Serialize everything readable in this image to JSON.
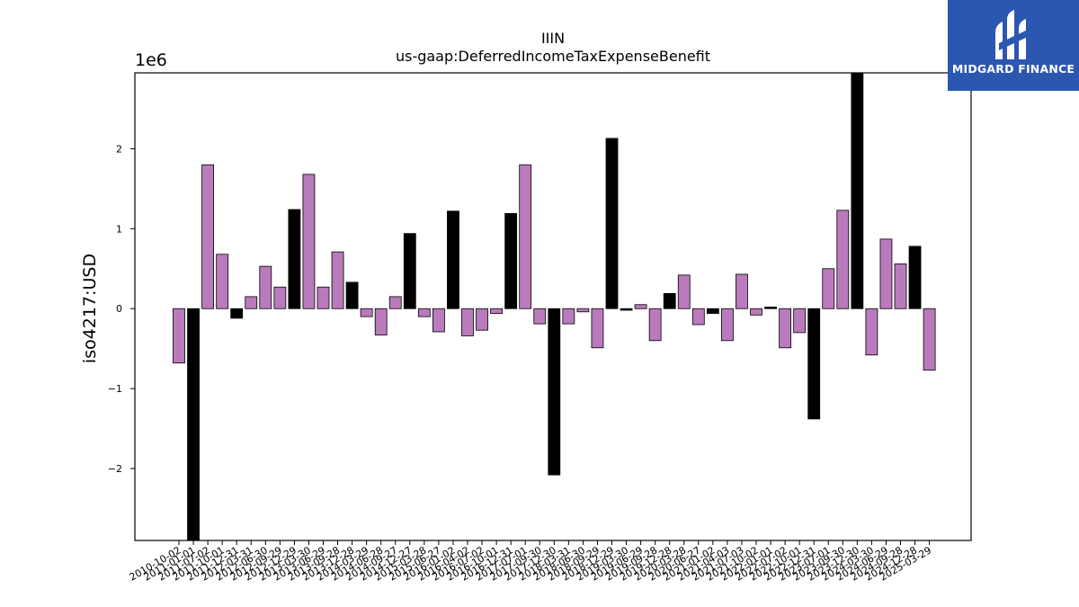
{
  "logo": {
    "text": "MIDGARD FINANCE",
    "icon": "midgard-m-icon",
    "bg_color": "#2b57b1"
  },
  "colors": {
    "default_bar": "#b97bbb",
    "highlight_bar": "#000000",
    "edge": "#000000"
  },
  "chart_data": {
    "type": "bar",
    "title": "IIIN",
    "subtitle": "us-gaap:DeferredIncomeTaxExpenseBenefit",
    "ylabel": "iso4217:USD",
    "y_multiplier_label": "1e6",
    "y_multiplier": 1000000,
    "ylim": [
      -2.9,
      2.95
    ],
    "yticks": [
      -2,
      -1,
      0,
      1,
      2
    ],
    "ytick_labels": [
      "−2",
      "−1",
      "0",
      "1",
      "2"
    ],
    "grid": false,
    "categories": [
      "2010-10-02",
      "2011-01-01",
      "2011-07-02",
      "2011-10-01",
      "2011-12-31",
      "2012-03-31",
      "2012-06-30",
      "2012-09-29",
      "2012-12-29",
      "2013-03-30",
      "2013-06-29",
      "2013-09-28",
      "2013-12-28",
      "2014-03-29",
      "2014-06-28",
      "2014-09-27",
      "2014-12-27",
      "2015-03-28",
      "2015-06-27",
      "2016-01-02",
      "2016-04-02",
      "2016-07-02",
      "2016-10-01",
      "2016-12-31",
      "2017-07-01",
      "2017-09-30",
      "2017-12-30",
      "2018-03-31",
      "2018-06-30",
      "2018-09-29",
      "2018-12-29",
      "2019-03-30",
      "2019-06-29",
      "2019-09-28",
      "2019-12-28",
      "2020-03-28",
      "2020-06-27",
      "2021-01-02",
      "2021-04-03",
      "2021-07-03",
      "2021-10-02",
      "2022-01-01",
      "2022-07-02",
      "2022-10-01",
      "2022-12-31",
      "2023-07-01",
      "2023-09-30",
      "2023-12-30",
      "2024-03-30",
      "2024-06-29",
      "2024-09-28",
      "2024-12-28",
      "2025-03-29"
    ],
    "values": [
      -0.68,
      -2.9,
      1.8,
      0.68,
      -0.12,
      0.15,
      0.53,
      0.27,
      1.24,
      1.68,
      0.27,
      0.71,
      0.33,
      -0.1,
      -0.33,
      0.15,
      0.94,
      -0.1,
      -0.29,
      1.22,
      -0.34,
      -0.27,
      -0.06,
      1.19,
      1.8,
      -0.19,
      -2.08,
      -0.19,
      -0.04,
      -0.49,
      2.13,
      -0.02,
      0.05,
      -0.4,
      0.19,
      0.42,
      -0.2,
      -0.06,
      -0.4,
      0.43,
      -0.08,
      0.02,
      -0.49,
      -0.3,
      -1.38,
      0.5,
      1.23,
      2.95,
      -0.58,
      0.87,
      0.56,
      0.78,
      -0.77
    ],
    "highlighted": [
      false,
      true,
      false,
      false,
      true,
      false,
      false,
      false,
      true,
      false,
      false,
      false,
      true,
      false,
      false,
      false,
      true,
      false,
      false,
      true,
      false,
      false,
      false,
      true,
      false,
      false,
      true,
      false,
      false,
      false,
      true,
      true,
      false,
      false,
      true,
      false,
      false,
      true,
      false,
      false,
      false,
      true,
      false,
      false,
      true,
      false,
      false,
      true,
      false,
      false,
      false,
      true,
      false
    ]
  }
}
